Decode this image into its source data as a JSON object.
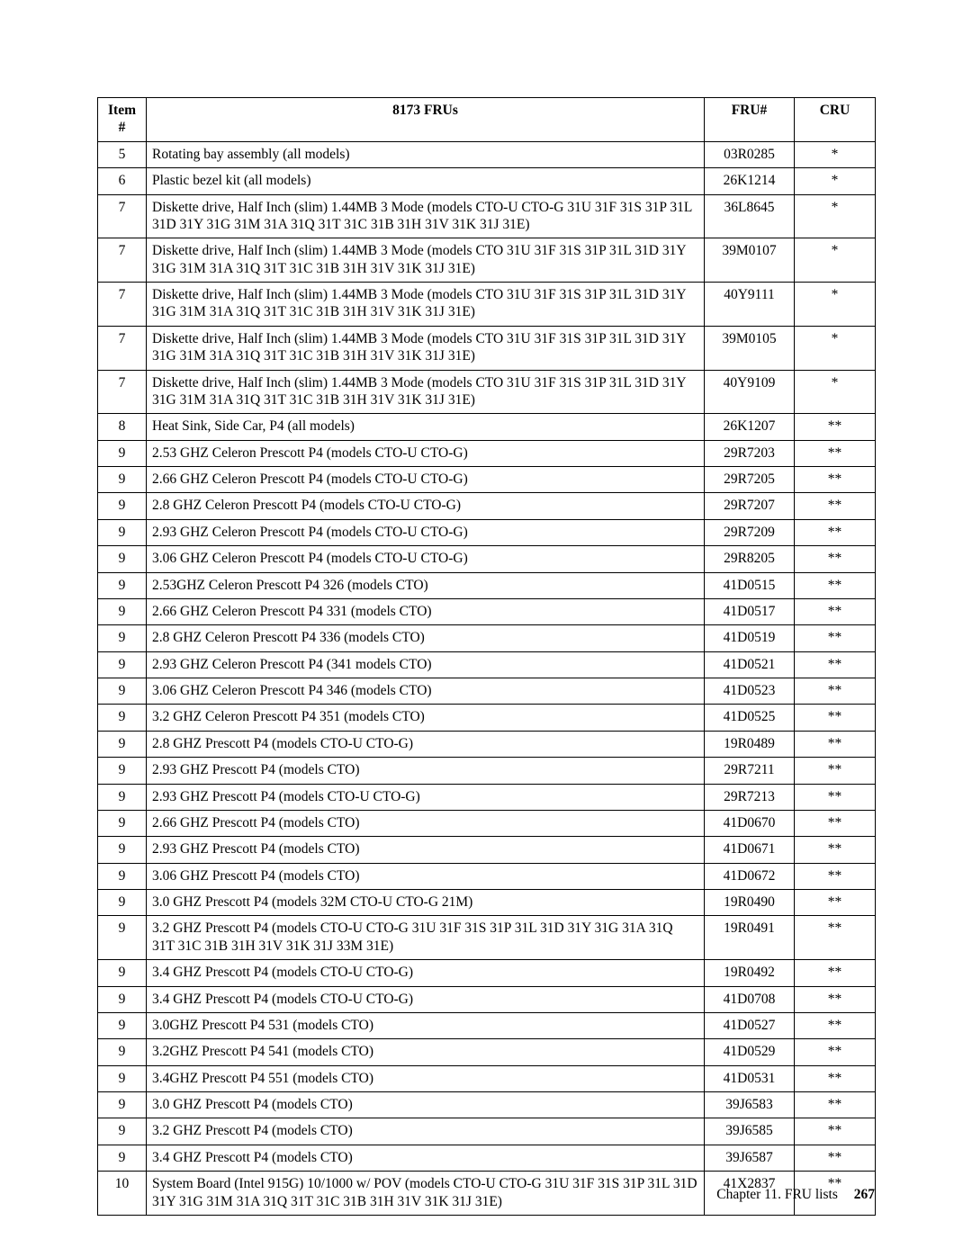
{
  "table": {
    "columns": {
      "item": "Item #",
      "desc": "8173 FRUs",
      "fru": "FRU#",
      "cru": "CRU"
    },
    "rows": [
      {
        "item": "5",
        "desc": "Rotating bay assembly (all models)",
        "fru": "03R0285",
        "cru": "*"
      },
      {
        "item": "6",
        "desc": "Plastic bezel kit (all models)",
        "fru": "26K1214",
        "cru": "*"
      },
      {
        "item": "7",
        "desc": "Diskette drive, Half Inch (slim) 1.44MB 3 Mode (models CTO-U CTO-G 31U 31F 31S 31P 31L 31D 31Y 31G 31M 31A 31Q 31T 31C 31B 31H 31V 31K 31J 31E)",
        "fru": "36L8645",
        "cru": "*"
      },
      {
        "item": "7",
        "desc": "Diskette drive, Half Inch (slim) 1.44MB 3 Mode (models CTO 31U 31F 31S 31P 31L 31D 31Y 31G 31M 31A 31Q 31T 31C 31B 31H 31V 31K 31J 31E)",
        "fru": "39M0107",
        "cru": "*"
      },
      {
        "item": "7",
        "desc": "Diskette drive, Half Inch (slim) 1.44MB 3 Mode (models CTO 31U 31F 31S 31P 31L 31D 31Y 31G 31M 31A 31Q 31T 31C 31B 31H 31V 31K 31J 31E)",
        "fru": "40Y9111",
        "cru": "*"
      },
      {
        "item": "7",
        "desc": "Diskette drive, Half Inch (slim) 1.44MB 3 Mode (models CTO 31U 31F 31S 31P 31L 31D 31Y 31G 31M 31A 31Q 31T 31C 31B 31H 31V 31K 31J 31E)",
        "fru": "39M0105",
        "cru": "*"
      },
      {
        "item": "7",
        "desc": "Diskette drive, Half Inch (slim) 1.44MB 3 Mode (models CTO 31U 31F 31S 31P 31L 31D 31Y 31G 31M 31A 31Q 31T 31C 31B 31H 31V 31K 31J 31E)",
        "fru": "40Y9109",
        "cru": "*"
      },
      {
        "item": "8",
        "desc": "Heat Sink, Side Car, P4 (all models)",
        "fru": "26K1207",
        "cru": "**"
      },
      {
        "item": "9",
        "desc": "2.53 GHZ Celeron Prescott P4 (models CTO-U CTO-G)",
        "fru": "29R7203",
        "cru": "**"
      },
      {
        "item": "9",
        "desc": "2.66 GHZ Celeron Prescott P4 (models CTO-U CTO-G)",
        "fru": "29R7205",
        "cru": "**"
      },
      {
        "item": "9",
        "desc": "2.8 GHZ Celeron Prescott P4 (models CTO-U CTO-G)",
        "fru": "29R7207",
        "cru": "**"
      },
      {
        "item": "9",
        "desc": "2.93 GHZ Celeron Prescott P4 (models CTO-U CTO-G)",
        "fru": "29R7209",
        "cru": "**"
      },
      {
        "item": "9",
        "desc": "3.06 GHZ Celeron Prescott P4 (models CTO-U CTO-G)",
        "fru": "29R8205",
        "cru": "**"
      },
      {
        "item": "9",
        "desc": "2.53GHZ Celeron Prescott P4 326 (models CTO)",
        "fru": "41D0515",
        "cru": "**"
      },
      {
        "item": "9",
        "desc": "2.66 GHZ Celeron Prescott P4 331 (models CTO)",
        "fru": "41D0517",
        "cru": "**"
      },
      {
        "item": "9",
        "desc": "2.8 GHZ Celeron Prescott P4 336 (models CTO)",
        "fru": "41D0519",
        "cru": "**"
      },
      {
        "item": "9",
        "desc": "2.93 GHZ Celeron Prescott P4 (341 models CTO)",
        "fru": "41D0521",
        "cru": "**"
      },
      {
        "item": "9",
        "desc": "3.06 GHZ Celeron Prescott P4 346 (models CTO)",
        "fru": "41D0523",
        "cru": "**"
      },
      {
        "item": "9",
        "desc": "3.2 GHZ Celeron Prescott P4 351 (models CTO)",
        "fru": "41D0525",
        "cru": "**"
      },
      {
        "item": "9",
        "desc": "2.8 GHZ Prescott P4 (models CTO-U CTO-G)",
        "fru": "19R0489",
        "cru": "**"
      },
      {
        "item": "9",
        "desc": "2.93 GHZ Prescott P4 (models CTO)",
        "fru": "29R7211",
        "cru": "**"
      },
      {
        "item": "9",
        "desc": "2.93 GHZ Prescott P4 (models CTO-U CTO-G)",
        "fru": "29R7213",
        "cru": "**"
      },
      {
        "item": "9",
        "desc": "2.66 GHZ Prescott P4 (models CTO)",
        "fru": "41D0670",
        "cru": "**"
      },
      {
        "item": "9",
        "desc": "2.93 GHZ Prescott P4 (models CTO)",
        "fru": "41D0671",
        "cru": "**"
      },
      {
        "item": "9",
        "desc": "3.06 GHZ Prescott P4 (models CTO)",
        "fru": "41D0672",
        "cru": "**"
      },
      {
        "item": "9",
        "desc": "3.0 GHZ Prescott P4 (models 32M CTO-U CTO-G 21M)",
        "fru": "19R0490",
        "cru": "**"
      },
      {
        "item": "9",
        "desc": "3.2 GHZ Prescott P4 (models CTO-U CTO-G 31U 31F 31S 31P 31L 31D 31Y 31G 31A 31Q 31T 31C 31B 31H 31V 31K 31J 33M 31E)",
        "fru": "19R0491",
        "cru": "**"
      },
      {
        "item": "9",
        "desc": "3.4 GHZ Prescott P4 (models CTO-U CTO-G)",
        "fru": "19R0492",
        "cru": "**"
      },
      {
        "item": "9",
        "desc": "3.4 GHZ Prescott P4 (models CTO-U CTO-G)",
        "fru": "41D0708",
        "cru": "**"
      },
      {
        "item": "9",
        "desc": "3.0GHZ Prescott P4 531 (models CTO)",
        "fru": "41D0527",
        "cru": "**"
      },
      {
        "item": "9",
        "desc": "3.2GHZ Prescott P4 541 (models CTO)",
        "fru": "41D0529",
        "cru": "**"
      },
      {
        "item": "9",
        "desc": "3.4GHZ Prescott P4 551 (models CTO)",
        "fru": "41D0531",
        "cru": "**"
      },
      {
        "item": "9",
        "desc": "3.0 GHZ Prescott P4 (models CTO)",
        "fru": "39J6583",
        "cru": "**"
      },
      {
        "item": "9",
        "desc": "3.2 GHZ Prescott P4 (models CTO)",
        "fru": "39J6585",
        "cru": "**"
      },
      {
        "item": "9",
        "desc": "3.4 GHZ Prescott P4 (models CTO)",
        "fru": "39J6587",
        "cru": "**"
      },
      {
        "item": "10",
        "desc": "System Board (Intel 915G) 10/1000 w/ POV (models CTO-U CTO-G 31U 31F 31S 31P 31L 31D 31Y 31G 31M 31A 31Q 31T 31C 31B 31H 31V 31K 31J 31E)",
        "fru": "41X2837",
        "cru": "**"
      }
    ]
  },
  "footer": {
    "text": "Chapter 11. FRU lists",
    "page": "267"
  }
}
